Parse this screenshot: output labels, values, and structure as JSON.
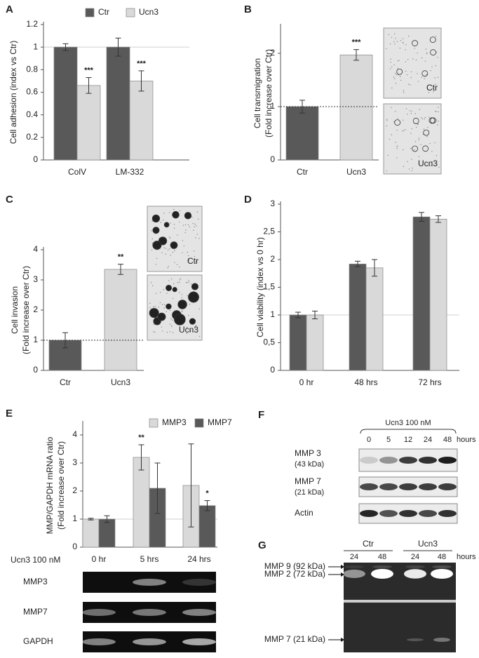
{
  "chart_data": [
    {
      "type": "bar",
      "panel": "A",
      "ylabel": "Cell adhesion (index vs Ctr)",
      "categories": [
        "ColV",
        "LM-332"
      ],
      "series": [
        {
          "name": "Ctr",
          "color": "#595959",
          "values": [
            1,
            1
          ],
          "errors": [
            0.03,
            0.08
          ]
        },
        {
          "name": "Ucn3",
          "color": "#d9d9d9",
          "values": [
            0.66,
            0.7
          ],
          "errors": [
            0.07,
            0.09
          ],
          "significance": [
            "***",
            "***"
          ]
        }
      ],
      "ylim": [
        0,
        1.2
      ],
      "yticks": [
        0,
        0.2,
        0.4,
        0.6,
        0.8,
        1,
        1.2
      ],
      "hline": 1,
      "hline_style": "solid"
    },
    {
      "type": "bar",
      "panel": "B",
      "ylabel": [
        "Cell transmigration",
        "(Fold increase over Ctr)"
      ],
      "categories": [
        "Ctr",
        "Ucn3"
      ],
      "colors": [
        "#595959",
        "#d9d9d9"
      ],
      "values": [
        1,
        1.97
      ],
      "errors": [
        0.12,
        0.1
      ],
      "significance": [
        null,
        "***"
      ],
      "ylim": [
        0,
        2.5
      ],
      "yticks": [
        0,
        1,
        2
      ],
      "hline": 1,
      "hline_style": "dotted",
      "image_labels": [
        "Ctr",
        "Ucn3"
      ]
    },
    {
      "type": "bar",
      "panel": "C",
      "ylabel": [
        "Cell invasion",
        "(Fold increase over Ctr)"
      ],
      "categories": [
        "Ctr",
        "Ucn3"
      ],
      "colors": [
        "#595959",
        "#d9d9d9"
      ],
      "values": [
        1,
        3.35
      ],
      "errors": [
        0.25,
        0.17
      ],
      "significance": [
        null,
        "**"
      ],
      "ylim": [
        0,
        4
      ],
      "yticks": [
        0,
        1,
        2,
        3,
        4
      ],
      "hline": 1,
      "hline_style": "dotted",
      "image_labels": [
        "Ctr",
        "Ucn3"
      ]
    },
    {
      "type": "bar",
      "panel": "D",
      "ylabel": "Cell viability (index vs 0 hr)",
      "categories": [
        "0 hr",
        "48 hrs",
        "72 hrs"
      ],
      "series": [
        {
          "color": "#595959",
          "values": [
            1,
            1.92,
            2.77
          ],
          "errors": [
            0.05,
            0.05,
            0.08
          ]
        },
        {
          "color": "#d9d9d9",
          "values": [
            1,
            1.85,
            2.73
          ],
          "errors": [
            0.07,
            0.15,
            0.06
          ]
        }
      ],
      "ylim": [
        0,
        3
      ],
      "yticks": [
        0,
        {
          "value": 0.5,
          "label": "0,5"
        },
        1,
        {
          "value": 1.5,
          "label": "1,5"
        },
        2,
        {
          "value": 2.5,
          "label": "2,5"
        },
        3
      ],
      "hline": 1,
      "hline_style": "solid"
    },
    {
      "type": "bar",
      "panel": "E",
      "ylabel": [
        "MMP/GAPDH mRNA ratio",
        "(Fold increase over Ctr)"
      ],
      "xlabel": "Ucn3 100 nM",
      "categories": [
        "0 hr",
        "5 hrs",
        "24 hrs"
      ],
      "series": [
        {
          "name": "MMP3",
          "color": "#d9d9d9",
          "values": [
            1,
            3.2,
            2.2
          ],
          "errors": [
            0.03,
            0.45,
            1.48
          ],
          "significance": [
            null,
            "**",
            null
          ]
        },
        {
          "name": "MMP7",
          "color": "#595959",
          "values": [
            1,
            2.1,
            1.48
          ],
          "errors": [
            0.12,
            0.9,
            0.18
          ],
          "significance": [
            null,
            null,
            "*"
          ]
        }
      ],
      "ylim": [
        0,
        4.4
      ],
      "yticks": [
        0,
        1,
        2,
        3,
        4
      ],
      "hline": 1,
      "hline_style": "solid"
    }
  ],
  "panel_e_gel": {
    "rows": [
      "MMP3",
      "MMP7",
      "GAPDH"
    ]
  },
  "panel_f": {
    "label": "F",
    "treatment": "Ucn3 100 nM",
    "lanes": [
      "0",
      "5",
      "12",
      "24",
      "48"
    ],
    "unit": "hours",
    "rows": [
      [
        "MMP 3",
        "(43 kDa)"
      ],
      [
        "MMP 7",
        "(21 kDa)"
      ],
      [
        "Actin"
      ]
    ]
  },
  "panel_g": {
    "label": "G",
    "groups": [
      "Ctr",
      "Ucn3"
    ],
    "lanes": [
      "24",
      "48",
      "24",
      "48"
    ],
    "unit": "hours",
    "bands": [
      "MMP 9 (92 kDa)",
      "MMP 2 (72 kDa)",
      "MMP 7 (21 kDa)"
    ]
  }
}
